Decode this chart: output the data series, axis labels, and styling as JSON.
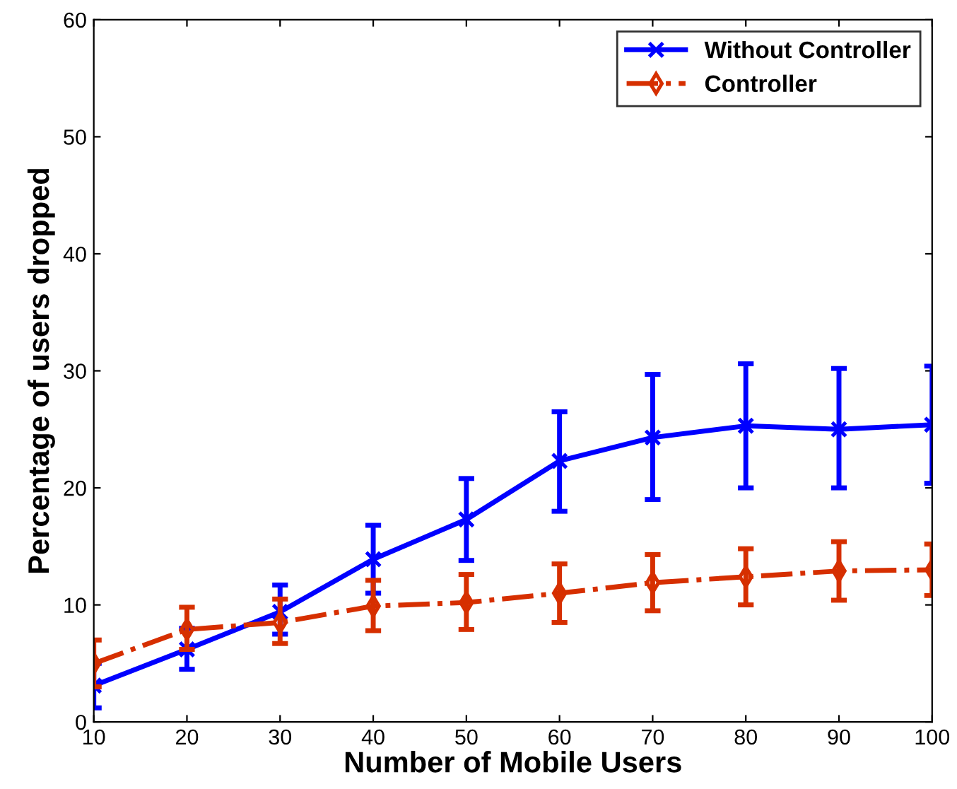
{
  "chart_data": {
    "type": "line",
    "xlabel": "Number of Mobile Users",
    "ylabel": "Percentage of users dropped",
    "x": [
      10,
      20,
      30,
      40,
      50,
      60,
      70,
      80,
      90,
      100
    ],
    "xlim": [
      10,
      100
    ],
    "xticks": [
      10,
      20,
      30,
      40,
      50,
      60,
      70,
      80,
      90,
      100
    ],
    "ylim": [
      0,
      60
    ],
    "yticks": [
      0,
      10,
      20,
      30,
      40,
      50,
      60
    ],
    "grid": false,
    "legend": "top right",
    "series": [
      {
        "name": "Without Controller",
        "color": "#0000ff",
        "marker": "cross",
        "line_style": "solid",
        "values": [
          3.1,
          6.2,
          9.4,
          13.9,
          17.3,
          22.3,
          24.3,
          25.3,
          25.0,
          25.4
        ],
        "errors": [
          [
            1.2,
            5.0
          ],
          [
            4.5,
            8.0
          ],
          [
            7.5,
            11.7
          ],
          [
            11.0,
            16.8
          ],
          [
            13.8,
            20.8
          ],
          [
            18.0,
            26.5
          ],
          [
            19.0,
            29.7
          ],
          [
            20.0,
            30.6
          ],
          [
            20.0,
            30.2
          ],
          [
            20.4,
            30.4
          ]
        ]
      },
      {
        "name": "Controller",
        "color": "#d62f00",
        "marker": "diamond",
        "line_style": "dashdot",
        "values": [
          5.0,
          7.9,
          8.5,
          9.9,
          10.2,
          11.0,
          11.9,
          12.4,
          12.9,
          13.0
        ],
        "errors": [
          [
            3.0,
            7.0
          ],
          [
            6.2,
            9.8
          ],
          [
            6.7,
            10.5
          ],
          [
            7.8,
            12.1
          ],
          [
            7.9,
            12.6
          ],
          [
            8.5,
            13.5
          ],
          [
            9.5,
            14.3
          ],
          [
            10.0,
            14.8
          ],
          [
            10.4,
            15.4
          ],
          [
            10.8,
            15.2
          ]
        ]
      }
    ]
  }
}
